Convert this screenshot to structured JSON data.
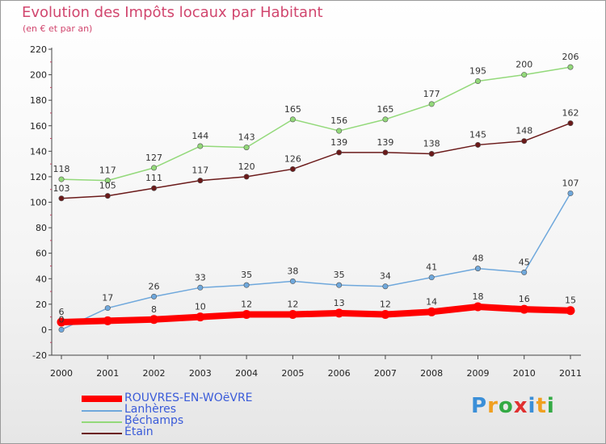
{
  "header": {
    "title": "Evolution des Impôts locaux par Habitant",
    "subtitle": "(en € et par an)"
  },
  "logo": {
    "text": "Proxiti",
    "colors": [
      "#3b8fd8",
      "#f0a020",
      "#33aa44",
      "#e03030",
      "#3b8fd8",
      "#f0a020",
      "#33aa44"
    ]
  },
  "chart_data": {
    "type": "line",
    "title": "Evolution des Impôts locaux par Habitant",
    "subtitle": "(en € et par an)",
    "xlabel": "",
    "ylabel": "",
    "x": [
      "2000",
      "2001",
      "2002",
      "2003",
      "2004",
      "2005",
      "2006",
      "2007",
      "2008",
      "2009",
      "2010",
      "2011"
    ],
    "ylim": [
      -20,
      220
    ],
    "yticks": [
      -20,
      0,
      20,
      40,
      60,
      80,
      100,
      120,
      140,
      160,
      180,
      200,
      220
    ],
    "grid": false,
    "legend_position": "bottom-left",
    "series": [
      {
        "name": "ROUVRES-EN-WOëVRE",
        "color": "#ff0000",
        "values": [
          6,
          7,
          8,
          10,
          12,
          12,
          13,
          12,
          14,
          18,
          16,
          15
        ],
        "labels": [
          "6",
          "",
          "8",
          "10",
          "12",
          "12",
          "13",
          "12",
          "14",
          "18",
          "16",
          "15"
        ]
      },
      {
        "name": "Lanhères",
        "color": "#6fa8dc",
        "values": [
          0,
          17,
          26,
          33,
          35,
          38,
          35,
          34,
          41,
          48,
          45,
          107
        ],
        "labels": [
          "0",
          "17",
          "26",
          "33",
          "35",
          "38",
          "35",
          "34",
          "41",
          "48",
          "45",
          "107"
        ]
      },
      {
        "name": "Béchamps",
        "color": "#93d97a",
        "values": [
          118,
          117,
          127,
          144,
          143,
          165,
          156,
          165,
          177,
          195,
          200,
          206
        ],
        "labels": [
          "118",
          "117",
          "127",
          "144",
          "143",
          "165",
          "156",
          "165",
          "177",
          "195",
          "200",
          "206"
        ]
      },
      {
        "name": "Étain",
        "color": "#6b1a1a",
        "values": [
          103,
          105,
          111,
          117,
          120,
          126,
          139,
          139,
          138,
          145,
          148,
          162
        ],
        "labels": [
          "103",
          "105",
          "111",
          "117",
          "120",
          "126",
          "139",
          "139",
          "138",
          "145",
          "148",
          "162"
        ]
      }
    ]
  }
}
